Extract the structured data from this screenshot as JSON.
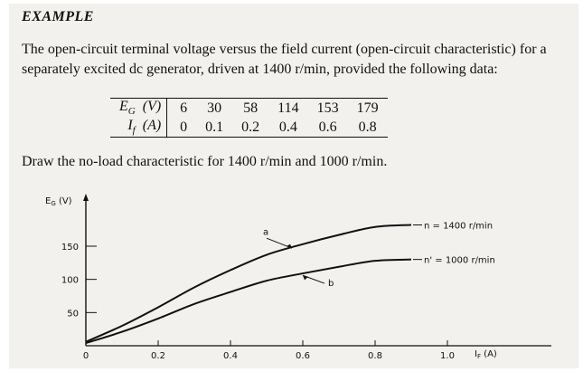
{
  "heading": "EXAMPLE",
  "problem_text": "The open-circuit terminal voltage versus the field current (open-circuit characteristic) for a separately excited dc generator, driven at 1400 r/min, provided the following data:",
  "table": {
    "row1_label": "E_G (V)",
    "row2_label": "I_f (A)",
    "eg_values": [
      "6",
      "30",
      "58",
      "114",
      "153",
      "179"
    ],
    "if_values": [
      "0",
      "0.1",
      "0.2",
      "0.4",
      "0.6",
      "0.8"
    ]
  },
  "instruction_text": "Draw the no-load characteristic for 1400 r/min and 1000 r/min.",
  "chart_data": {
    "type": "line",
    "ylabel": "E_G (V)",
    "xlabel": "I_F (A)",
    "xlim": [
      0,
      1.0
    ],
    "ylim": [
      0,
      185
    ],
    "x_ticks": [
      "0",
      "0.2",
      "0.4",
      "0.6",
      "0.8",
      "1.0"
    ],
    "y_ticks": [
      "50",
      "100",
      "150"
    ],
    "series": [
      {
        "name": "n = 1400 r/min",
        "marker_label": "a",
        "x": [
          0,
          0.1,
          0.2,
          0.3,
          0.4,
          0.5,
          0.6,
          0.7,
          0.8,
          0.9
        ],
        "values": [
          6,
          30,
          58,
          88,
          114,
          137,
          153,
          167,
          179,
          182
        ]
      },
      {
        "name": "n' = 1000 r/min",
        "marker_label": "b",
        "x": [
          0,
          0.1,
          0.2,
          0.3,
          0.4,
          0.5,
          0.6,
          0.7,
          0.8,
          0.9
        ],
        "values": [
          4,
          21,
          41,
          63,
          81,
          98,
          109,
          119,
          128,
          130
        ]
      }
    ]
  }
}
